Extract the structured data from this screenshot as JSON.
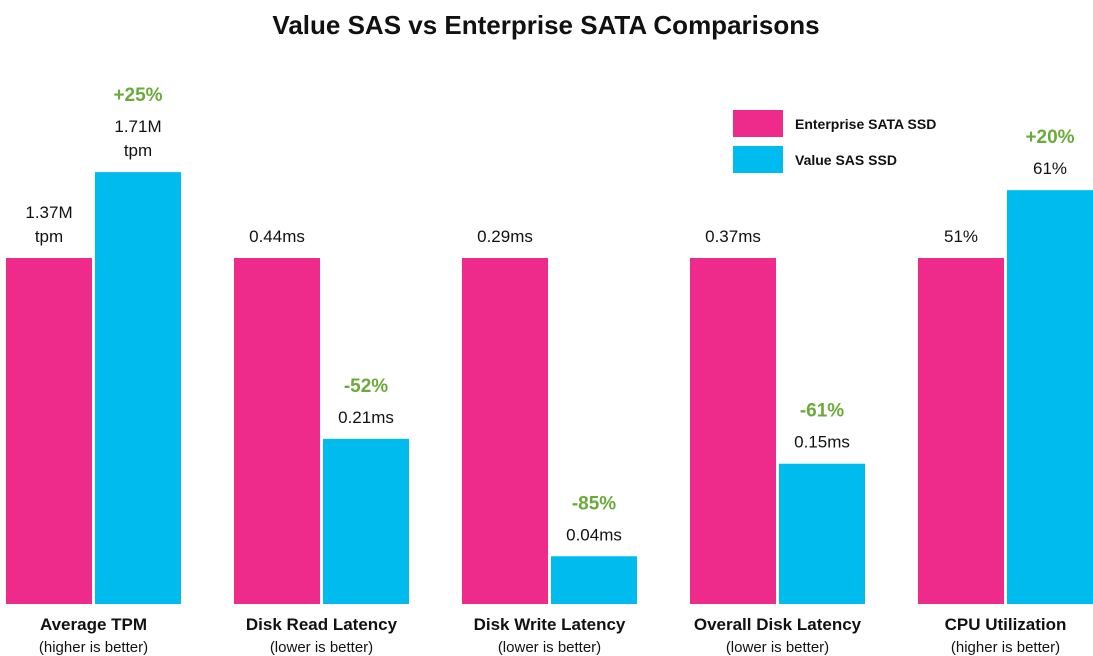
{
  "chart_data": {
    "type": "bar",
    "title": "Value SAS vs Enterprise SATA Comparisons",
    "categories": [
      "Average TPM",
      "Disk Read Latency",
      "Disk Write Latency",
      "Overall Disk Latency",
      "CPU Utilization"
    ],
    "category_notes": [
      "(higher is better)",
      "(lower is better)",
      "(lower is better)",
      "(lower is better)",
      "(higher is better)"
    ],
    "series": [
      {
        "name": "Enterprise SATA SSD",
        "color": "#ee2a8a",
        "values": [
          1370000,
          0.44,
          0.29,
          0.37,
          51
        ],
        "value_labels": [
          "1.37M tpm",
          "0.44ms",
          "0.29ms",
          "0.37ms",
          "51%"
        ]
      },
      {
        "name": "Value SAS SSD",
        "color": "#00bbee",
        "values": [
          1710000,
          0.21,
          0.04,
          0.15,
          61
        ],
        "value_labels": [
          "1.71M tpm",
          "0.21ms",
          "0.04ms",
          "0.15ms",
          "61%"
        ]
      }
    ],
    "changes": {
      "color": "#6aaa3a",
      "values": [
        25,
        -52,
        -85,
        -61,
        20
      ],
      "labels": [
        "+25%",
        "-52%",
        "-85%",
        "-61%",
        "+20%"
      ]
    },
    "legend": "upper right"
  }
}
